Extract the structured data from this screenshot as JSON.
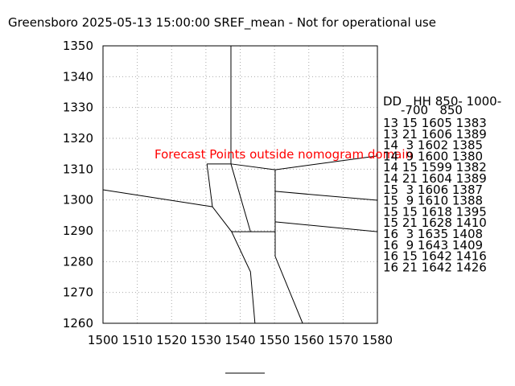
{
  "chart_data": {
    "type": "line",
    "title": "Greensboro 2025-05-13 15:00:00 SREF_mean - Not for operational use",
    "annotation": "Forecast Points outside nomogram domain",
    "annotation_color": "#ff0000",
    "color": "#000000",
    "grid": true,
    "xlim": [
      1500,
      1580
    ],
    "xticks": [
      1500,
      1510,
      1520,
      1530,
      1540,
      1550,
      1560,
      1570,
      1580
    ],
    "ylim": [
      1260,
      1350
    ],
    "yticks": [
      1260,
      1270,
      1280,
      1290,
      1300,
      1310,
      1320,
      1330,
      1340,
      1350
    ],
    "series": [
      {
        "x": [
          1537.3,
          1537.3
        ],
        "values": [
          1350,
          1311.7
        ]
      },
      {
        "x": [
          1530.3,
          1537.3,
          1550.2,
          1580
        ],
        "values": [
          1311.7,
          1311.7,
          1309.8,
          1314.3
        ]
      },
      {
        "x": [
          1550.2,
          1550.2
        ],
        "values": [
          1309.8,
          1289.7
        ]
      },
      {
        "x": [
          1550.2,
          1580
        ],
        "values": [
          1302.8,
          1299.9
        ]
      },
      {
        "x": [
          1550.2,
          1580
        ],
        "values": [
          1292.9,
          1289.7
        ]
      },
      {
        "x": [
          1537.3,
          1543.0
        ],
        "values": [
          1311.7,
          1289.7
        ]
      },
      {
        "x": [
          1537.5,
          1550.2
        ],
        "values": [
          1289.7,
          1289.7
        ]
      },
      {
        "x": [
          1530.3,
          1531.9
        ],
        "values": [
          1311.7,
          1297.8
        ]
      },
      {
        "x": [
          1500,
          1531.9,
          1537.5,
          1543.0,
          1544.3
        ],
        "values": [
          1303.3,
          1297.8,
          1289.7,
          1276.7,
          1260
        ]
      },
      {
        "x": [
          1550.2,
          1550.2,
          1558.2
        ],
        "values": [
          1289.7,
          1281.7,
          1260
        ]
      }
    ],
    "table_header": [
      "DD   HH 850- 1000-",
      "-700   850"
    ],
    "table_rows": [
      "13 15 1605 1383",
      "13 21 1606 1389",
      "14  3 1602 1385",
      "14  9 1600 1380",
      "14 15 1599 1382",
      "14 21 1604 1389",
      "15  3 1606 1387",
      "15  9 1610 1388",
      "15 15 1618 1395",
      "15 21 1628 1410",
      "16  3 1635 1408",
      "16  9 1643 1409",
      "16 15 1642 1416",
      "16 21 1642 1426"
    ]
  }
}
